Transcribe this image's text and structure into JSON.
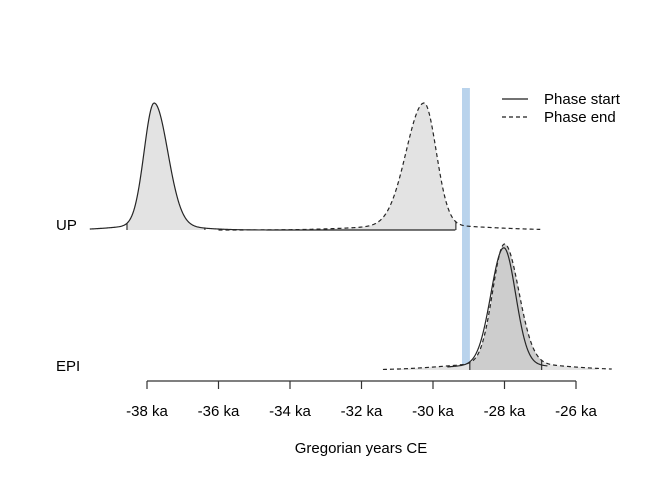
{
  "chart_data": {
    "type": "area",
    "title": "",
    "xlabel": "Gregorian years CE",
    "x_unit": "ka (thousands of years CE)",
    "xlim": [
      -39.6,
      -25.0
    ],
    "grid": false,
    "legend_position": "top-right",
    "legend": [
      {
        "label": "Phase start",
        "line_style": "solid"
      },
      {
        "label": "Phase end",
        "line_style": "dashed"
      }
    ],
    "x_ticks": [
      {
        "ka": -38,
        "label": "-38 ka"
      },
      {
        "ka": -36,
        "label": "-36 ka"
      },
      {
        "ka": -34,
        "label": "-34 ka"
      },
      {
        "ka": -32,
        "label": "-32 ka"
      },
      {
        "ka": -30,
        "label": "-30 ka"
      },
      {
        "ka": -28,
        "label": "-28 ka"
      },
      {
        "ka": -26,
        "label": "-26 ka"
      }
    ],
    "event_band": {
      "ka_from": -29.19,
      "ka_to": -28.97,
      "color": "#b9d3ec"
    },
    "colors": {
      "curve": "#262626",
      "axis": "#333333",
      "fill_light": "#e3e3e3",
      "fill_dark": "#cdcdcd"
    },
    "rows": [
      {
        "label": "UP",
        "densities": [
          {
            "name": "phase-start",
            "style": "solid",
            "peak_ka": -37.8,
            "sd_left": 0.28,
            "sd_right": 0.38,
            "tail_amp": 0.04,
            "tail_sd": 1.0,
            "rel_height": 1.0,
            "draw_range": [
              -39.6,
              -29.36
            ],
            "fills": [
              {
                "range": [
                  -38.56,
                  -36.38
                ],
                "color": "#e3e3e3"
              }
            ],
            "notches": [
              -38.56,
              -36.38
            ]
          },
          {
            "name": "phase-end",
            "style": "dashed",
            "peak_ka": -30.25,
            "sd_left": 0.5,
            "sd_right": 0.34,
            "tail_amp": 0.04,
            "tail_sd": 1.6,
            "rel_height": 1.0,
            "draw_range": [
              -36.0,
              -27.0
            ],
            "fills": [
              {
                "range": [
                  -33.6,
                  -29.36
                ],
                "color": "#e3e3e3"
              }
            ],
            "notches": [
              -29.36
            ]
          }
        ]
      },
      {
        "label": "EPI",
        "densities": [
          {
            "name": "phase-start",
            "style": "solid",
            "peak_ka": -28.02,
            "sd_left": 0.36,
            "sd_right": 0.33,
            "tail_amp": 0.05,
            "tail_sd": 1.4,
            "rel_height": 0.97,
            "draw_range": [
              -29.6,
              -26.8
            ],
            "fills": [],
            "notches": []
          },
          {
            "name": "phase-end",
            "style": "dashed",
            "peak_ka": -28.0,
            "sd_left": 0.33,
            "sd_right": 0.4,
            "tail_amp": 0.06,
            "tail_sd": 1.5,
            "rel_height": 1.0,
            "draw_range": [
              -31.4,
              -25.0
            ],
            "fills": [
              {
                "range": [
                  -31.0,
                  -25.4
                ],
                "color": "#e3e3e3"
              },
              {
                "range": [
                  -28.97,
                  -26.96
                ],
                "color": "#cdcdcd"
              }
            ],
            "notches": [
              -28.97,
              -26.96
            ]
          }
        ]
      }
    ]
  }
}
